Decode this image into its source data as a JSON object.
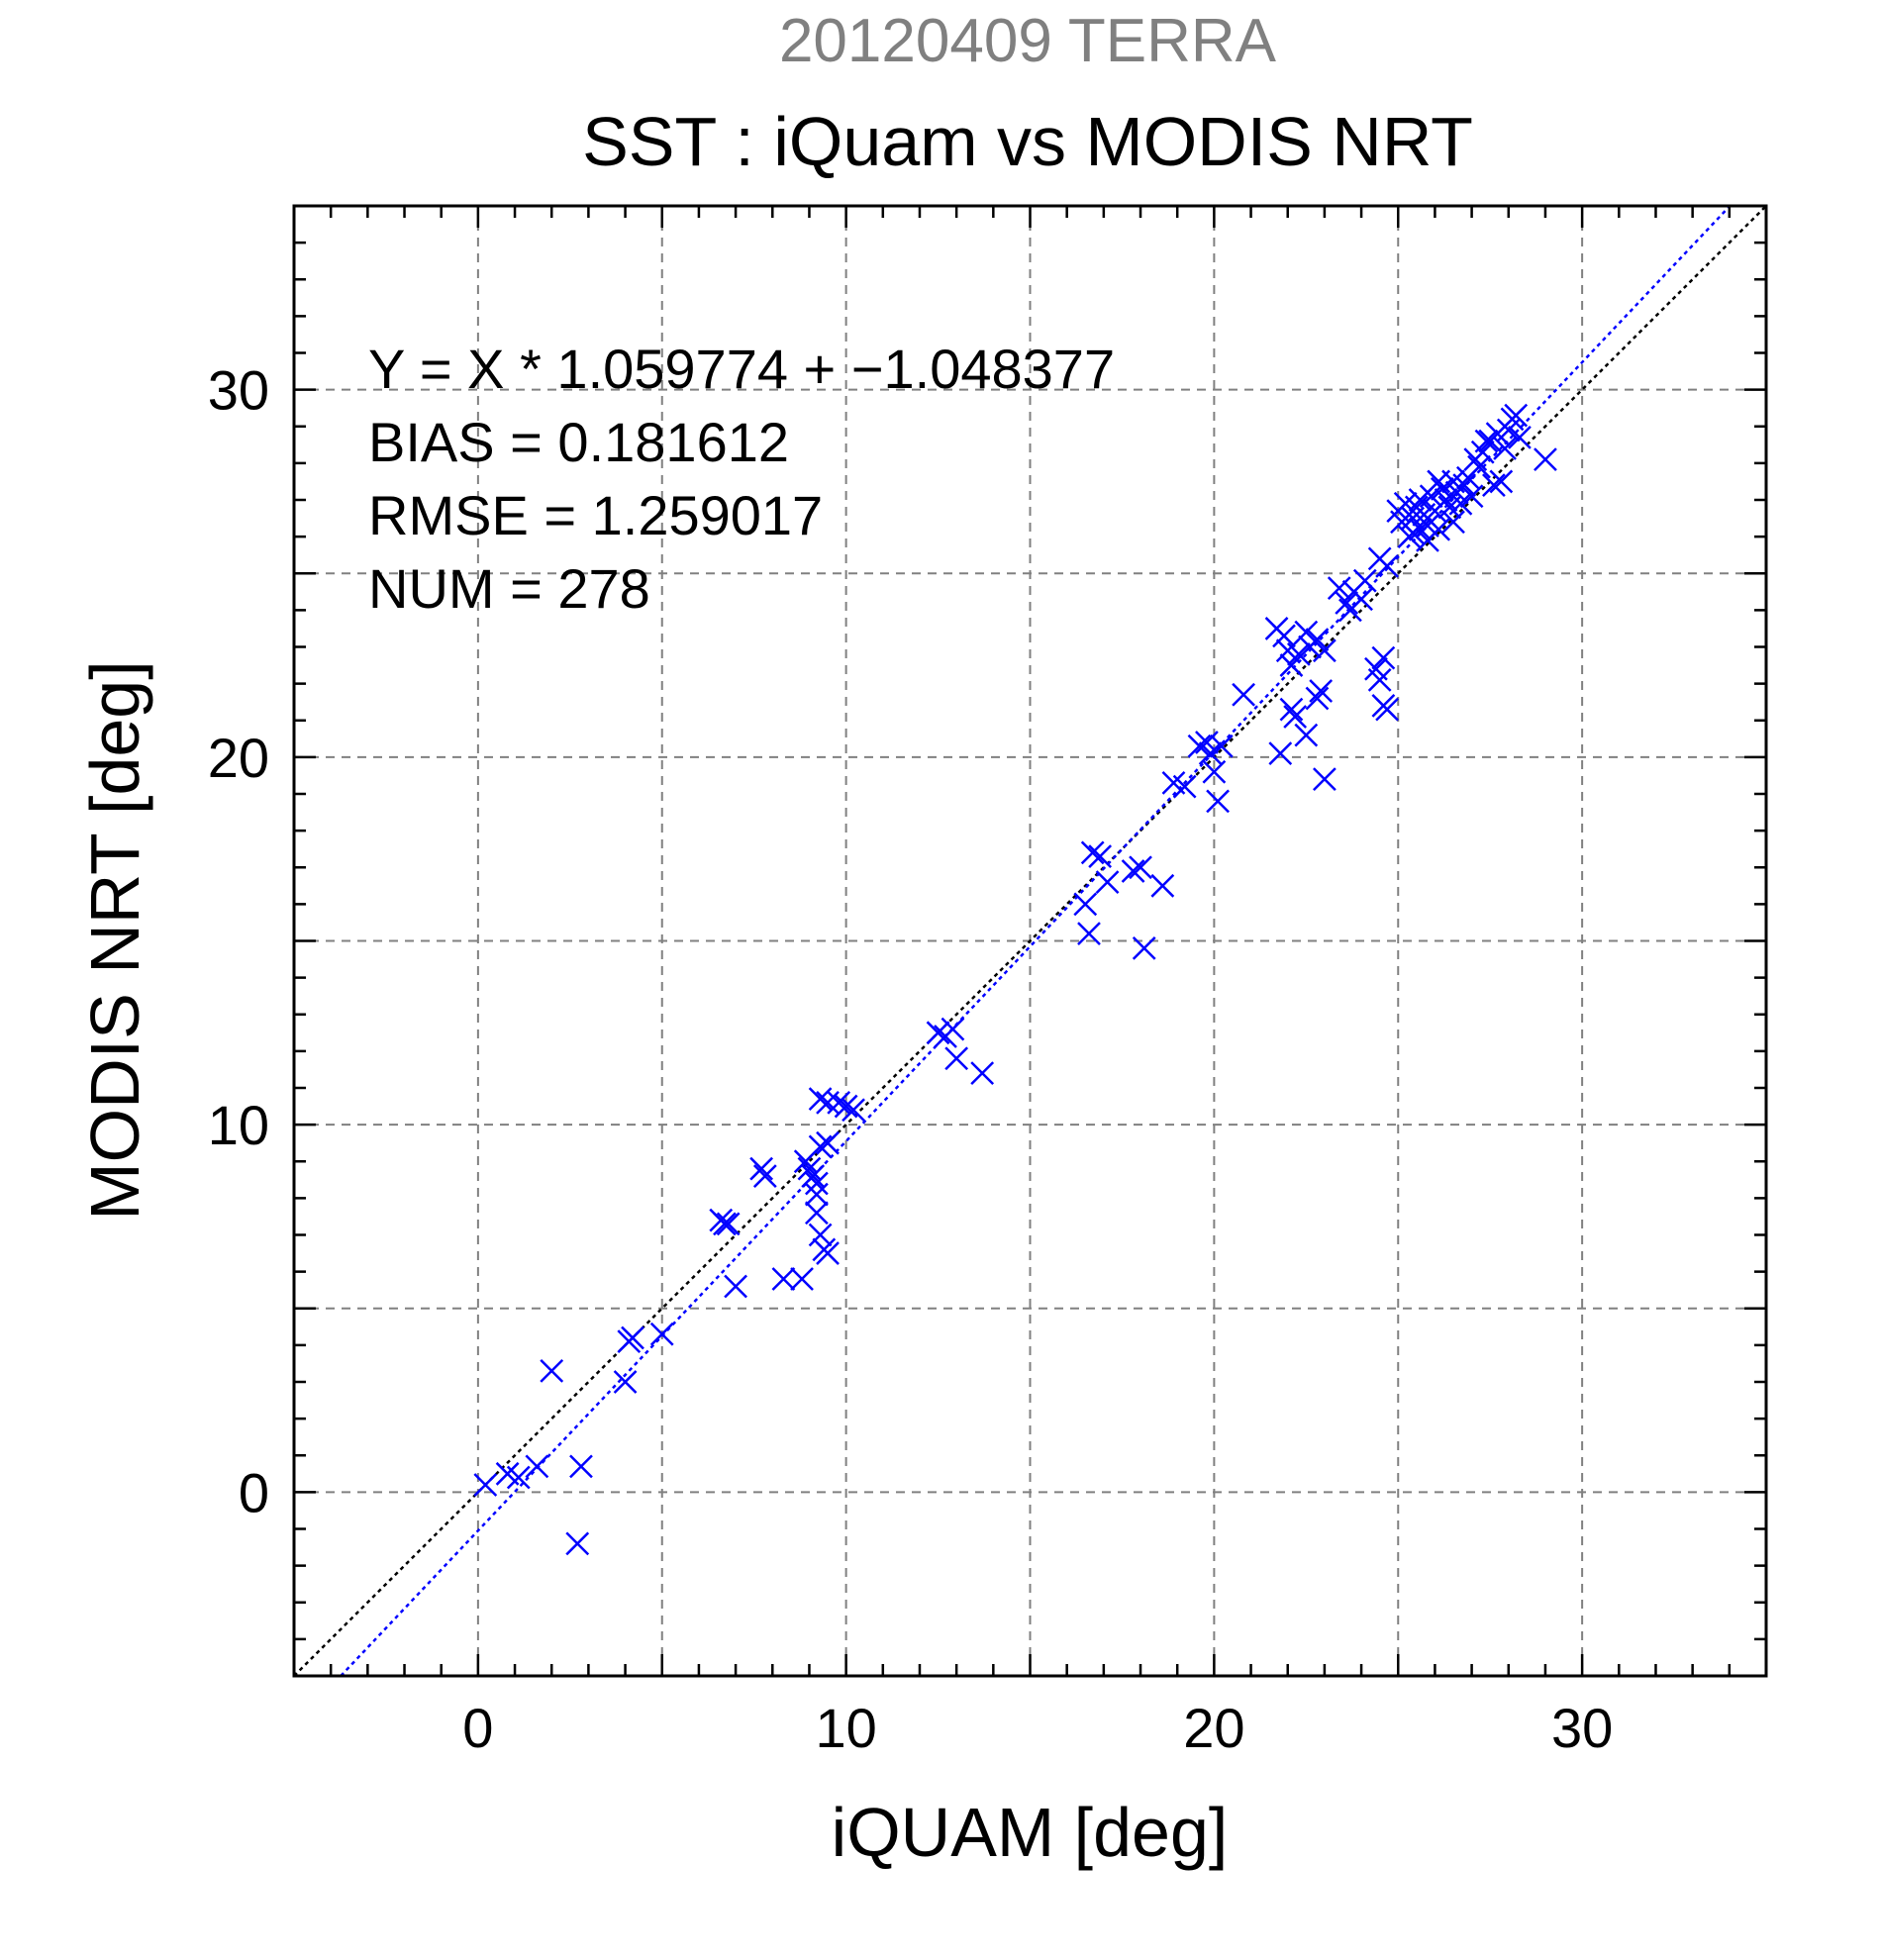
{
  "chart_data": {
    "type": "scatter",
    "suptitle": "20120409 TERRA",
    "title": "SST : iQuam vs MODIS NRT",
    "xlabel": "iQUAM [deg]",
    "ylabel": "MODIS NRT [deg]",
    "xlim": [
      -5,
      35
    ],
    "ylim": [
      -5,
      35
    ],
    "x_ticks": [
      0,
      10,
      20,
      30
    ],
    "y_ticks": [
      0,
      10,
      20,
      30
    ],
    "grid": true,
    "stats": [
      "Y = X * 1.059774 + −1.048377",
      "BIAS = 0.181612",
      "RMSE = 1.259017",
      "NUM = 278"
    ],
    "regression": {
      "slope": 1.059774,
      "intercept": -1.048377
    },
    "colors": {
      "points": "#0000ff",
      "fit_line": "#0000ff",
      "identity_line": "#000000",
      "grid": "#808080",
      "suptitle": "#808080",
      "axis": "#000000"
    },
    "series": [
      {
        "marker": "x",
        "points": [
          [
            0.2,
            0.2
          ],
          [
            0.8,
            0.5
          ],
          [
            1.1,
            0.4
          ],
          [
            1.6,
            0.7
          ],
          [
            2.0,
            3.3
          ],
          [
            2.8,
            0.7
          ],
          [
            2.7,
            -1.4
          ],
          [
            4.0,
            3.0
          ],
          [
            4.1,
            4.1
          ],
          [
            4.2,
            4.2
          ],
          [
            5.0,
            4.3
          ],
          [
            6.6,
            7.4
          ],
          [
            6.7,
            7.3
          ],
          [
            6.8,
            7.3
          ],
          [
            7.0,
            5.6
          ],
          [
            7.7,
            8.8
          ],
          [
            7.8,
            8.6
          ],
          [
            8.3,
            5.8
          ],
          [
            8.8,
            5.8
          ],
          [
            8.9,
            9.0
          ],
          [
            9.0,
            8.8
          ],
          [
            9.1,
            8.6
          ],
          [
            9.2,
            8.4
          ],
          [
            9.2,
            8.1
          ],
          [
            9.2,
            7.6
          ],
          [
            9.3,
            7.0
          ],
          [
            9.4,
            6.6
          ],
          [
            9.5,
            6.5
          ],
          [
            9.3,
            9.4
          ],
          [
            9.5,
            9.5
          ],
          [
            9.3,
            10.7
          ],
          [
            9.5,
            10.6
          ],
          [
            9.8,
            10.6
          ],
          [
            10.0,
            10.5
          ],
          [
            10.2,
            10.4
          ],
          [
            12.5,
            12.5
          ],
          [
            12.7,
            12.4
          ],
          [
            12.9,
            12.6
          ],
          [
            13.0,
            11.8
          ],
          [
            13.7,
            11.4
          ],
          [
            16.5,
            16.0
          ],
          [
            16.6,
            15.2
          ],
          [
            16.7,
            17.4
          ],
          [
            16.9,
            17.3
          ],
          [
            17.1,
            16.6
          ],
          [
            17.8,
            16.9
          ],
          [
            18.0,
            17.0
          ],
          [
            18.1,
            14.8
          ],
          [
            18.6,
            16.5
          ],
          [
            18.9,
            19.3
          ],
          [
            19.2,
            19.2
          ],
          [
            19.6,
            20.3
          ],
          [
            19.8,
            20.4
          ],
          [
            19.9,
            20.1
          ],
          [
            20.0,
            19.6
          ],
          [
            20.1,
            18.8
          ],
          [
            20.2,
            20.3
          ],
          [
            20.8,
            21.7
          ],
          [
            21.7,
            23.5
          ],
          [
            21.9,
            23.3
          ],
          [
            22.0,
            22.9
          ],
          [
            22.1,
            22.5
          ],
          [
            21.8,
            20.1
          ],
          [
            22.1,
            21.3
          ],
          [
            22.2,
            21.1
          ],
          [
            22.5,
            20.6
          ],
          [
            22.3,
            22.8
          ],
          [
            22.6,
            23.0
          ],
          [
            22.8,
            23.2
          ],
          [
            23.0,
            22.9
          ],
          [
            22.5,
            23.4
          ],
          [
            22.8,
            21.6
          ],
          [
            22.9,
            21.8
          ],
          [
            23.0,
            19.4
          ],
          [
            23.4,
            24.6
          ],
          [
            23.6,
            24.2
          ],
          [
            23.8,
            24.5
          ],
          [
            24.0,
            24.3
          ],
          [
            24.1,
            24.8
          ],
          [
            23.7,
            24.0
          ],
          [
            24.4,
            22.4
          ],
          [
            24.5,
            22.1
          ],
          [
            24.6,
            22.7
          ],
          [
            24.6,
            21.4
          ],
          [
            24.7,
            21.3
          ],
          [
            24.5,
            25.4
          ],
          [
            24.7,
            25.2
          ],
          [
            25.0,
            26.7
          ],
          [
            25.1,
            26.4
          ],
          [
            25.2,
            26.9
          ],
          [
            25.3,
            26.0
          ],
          [
            25.4,
            26.5
          ],
          [
            25.5,
            26.8
          ],
          [
            25.6,
            26.2
          ],
          [
            25.7,
            26.6
          ],
          [
            25.8,
            26.3
          ],
          [
            25.9,
            27.1
          ],
          [
            26.0,
            26.7
          ],
          [
            26.1,
            26.2
          ],
          [
            26.2,
            27.3
          ],
          [
            26.3,
            27.0
          ],
          [
            26.4,
            26.8
          ],
          [
            26.5,
            27.5
          ],
          [
            26.6,
            27.2
          ],
          [
            26.7,
            26.9
          ],
          [
            26.8,
            27.4
          ],
          [
            26.9,
            27.6
          ],
          [
            27.0,
            27.1
          ],
          [
            27.1,
            28.1
          ],
          [
            27.3,
            28.3
          ],
          [
            27.5,
            28.6
          ],
          [
            27.6,
            27.4
          ],
          [
            27.8,
            27.5
          ],
          [
            27.4,
            28.6
          ],
          [
            27.7,
            28.8
          ],
          [
            27.9,
            28.4
          ],
          [
            28.0,
            28.9
          ],
          [
            28.1,
            29.2
          ],
          [
            28.2,
            29.3
          ],
          [
            28.3,
            28.7
          ],
          [
            29.0,
            28.1
          ],
          [
            25.4,
            26.1
          ],
          [
            25.8,
            25.9
          ],
          [
            26.5,
            26.4
          ],
          [
            27.2,
            27.9
          ],
          [
            26.1,
            27.5
          ],
          [
            25.6,
            27.0
          ]
        ]
      }
    ]
  }
}
